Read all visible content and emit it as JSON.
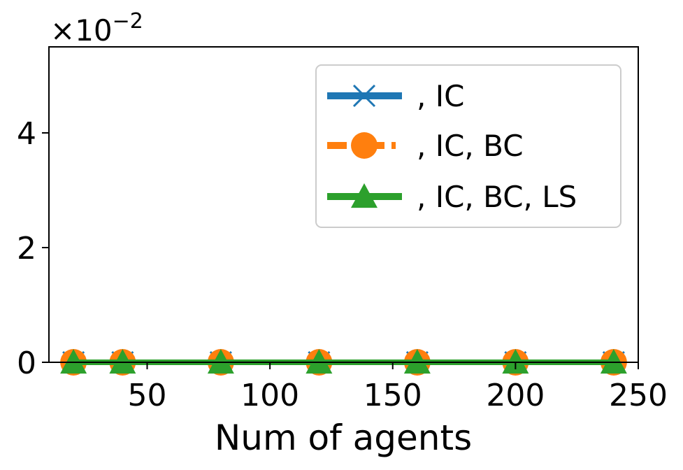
{
  "chart_data": {
    "type": "line",
    "xlabel": "Num of agents",
    "ylabel": "",
    "xlim": [
      10,
      250
    ],
    "ylim": [
      0,
      0.055
    ],
    "y_offset_text": "×10",
    "y_offset_exponent": "−2",
    "x_ticks": [
      50,
      100,
      150,
      200,
      250
    ],
    "y_ticks": [
      0,
      2,
      4
    ],
    "grid": false,
    "legend_placement": "top-right",
    "series": [
      {
        "name": ", IC",
        "color": "#1f77b4",
        "marker": "x",
        "linestyle": "solid",
        "x": [
          20,
          40,
          80,
          120,
          160,
          200,
          240
        ],
        "y": [
          0,
          0,
          0,
          0,
          0,
          0,
          0
        ]
      },
      {
        "name": ", IC, BC",
        "color": "#ff7f0e",
        "marker": "circle",
        "linestyle": "dashdot",
        "x": [
          20,
          40,
          80,
          120,
          160,
          200,
          240
        ],
        "y": [
          0,
          0,
          0,
          0,
          0,
          0,
          0
        ]
      },
      {
        "name": ", IC, BC, LS",
        "color": "#2ca02c",
        "marker": "triangle",
        "linestyle": "solid",
        "x": [
          20,
          40,
          80,
          120,
          160,
          200,
          240
        ],
        "y": [
          0,
          0,
          0,
          0,
          0,
          0,
          0
        ]
      }
    ]
  }
}
